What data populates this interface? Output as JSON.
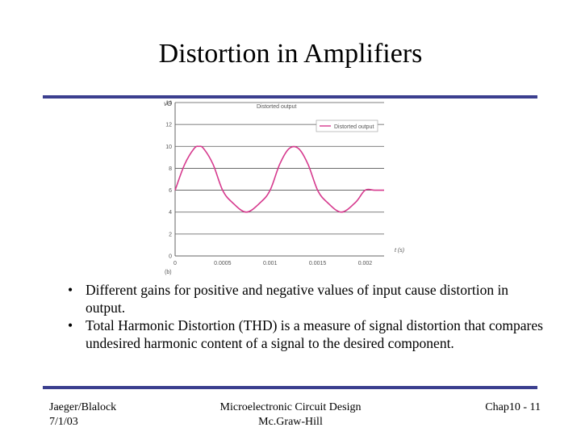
{
  "slide": {
    "title": "Distortion in Amplifiers"
  },
  "bullets": [
    "Different gains for positive and negative values of input cause distortion in output.",
    "Total Harmonic Distortion (THD) is a measure of signal distortion that compares undesired harmonic content of a signal to the desired component."
  ],
  "footer": {
    "left_line1": "Jaeger/Blalock",
    "left_line2": "7/1/03",
    "center_line1": "Microelectronic Circuit Design",
    "center_line2": "Mc.Graw-Hill",
    "right": "Chap10 - 11"
  },
  "colors": {
    "accent_rule": "#3b3f8f",
    "series": "#d63a8e"
  },
  "chart_data": {
    "type": "line",
    "title": "Distorted output",
    "ylabel": "vO",
    "xlabel": "t (s)",
    "panel_label": "(b)",
    "xlim": [
      0,
      0.0022
    ],
    "ylim": [
      0,
      14
    ],
    "grid": true,
    "legend_position": "top-right",
    "x_ticks": [
      "0",
      "0.0005",
      "0.001",
      "0.0015",
      "0.002"
    ],
    "x_tick_values": [
      0,
      0.0005,
      0.001,
      0.0015,
      0.002
    ],
    "y_ticks": [
      0,
      2,
      4,
      6,
      8,
      10,
      12,
      14
    ],
    "series": [
      {
        "name": "Distorted output",
        "x": [
          0,
          0.0001,
          0.0002,
          0.00025,
          0.0003,
          0.0004,
          0.0005,
          0.0006,
          0.00075,
          0.0009,
          0.001,
          0.0011,
          0.0012,
          0.0013,
          0.0014,
          0.0015,
          0.0016,
          0.00175,
          0.0019,
          0.002,
          0.0021,
          0.0022
        ],
        "y": [
          6,
          8.35,
          9.8,
          10,
          9.8,
          8.35,
          6,
          4.9,
          4,
          4.9,
          6,
          8.35,
          9.8,
          9.8,
          8.35,
          6,
          4.9,
          4,
          4.9,
          6,
          6,
          6
        ]
      }
    ]
  }
}
